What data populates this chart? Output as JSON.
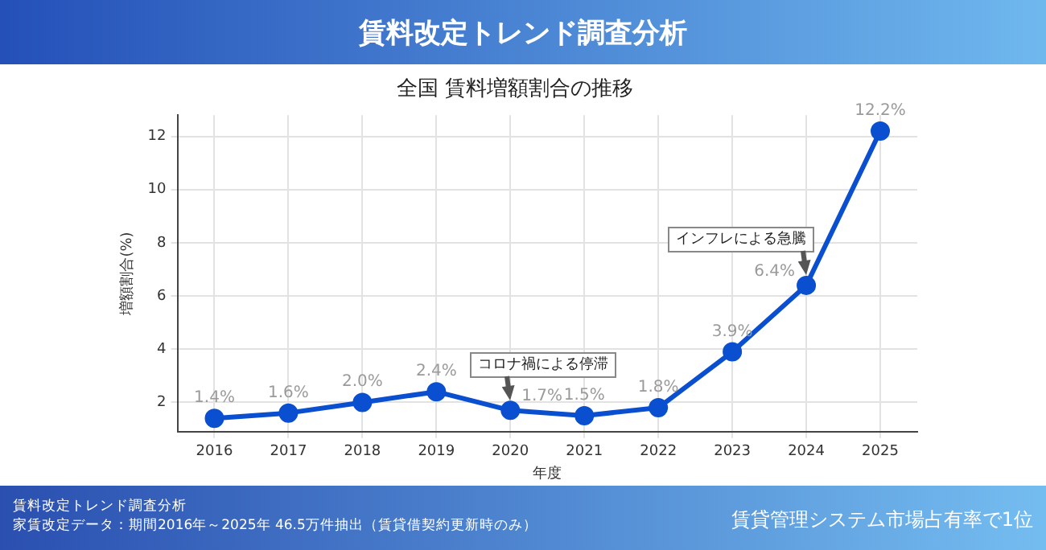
{
  "chart_data": {
    "type": "line",
    "title": "賃料改定トレンド調査分析",
    "subtitle": "全国 賃料増額割合の推移",
    "xlabel": "年度",
    "ylabel": "増額割合(%)",
    "categories": [
      "2016",
      "2017",
      "2018",
      "2019",
      "2020",
      "2021",
      "2022",
      "2023",
      "2024",
      "2025"
    ],
    "series": [
      {
        "color": "#0a4fd0",
        "values": [
          1.4,
          1.6,
          2.0,
          2.4,
          1.7,
          1.5,
          1.8,
          3.9,
          6.4,
          12.2
        ],
        "value_labels": [
          "1.4%",
          "1.6%",
          "2.0%",
          "2.4%",
          "1.7%",
          "1.5%",
          "1.8%",
          "3.9%",
          "6.4%",
          "12.2%"
        ]
      }
    ],
    "ylim": [
      0.9,
      12.8
    ],
    "yticks": [
      2,
      4,
      6,
      8,
      10,
      12
    ],
    "grid": true,
    "marker": "circle",
    "line_style": "solid",
    "legend": false,
    "annotations": [
      {
        "text": "コロナ禍による停滞",
        "x": "2020",
        "y": 1.7
      },
      {
        "text": "インフレによる急騰",
        "x": "2024",
        "y": 6.4
      },
      "賃料改定トレンド調査分析",
      "家賃改定データ：期間2016年～2025年 46.5万件抽出（賃貸借契約更新時のみ）",
      "賃貸管理システム市場占有率で1位"
    ]
  }
}
